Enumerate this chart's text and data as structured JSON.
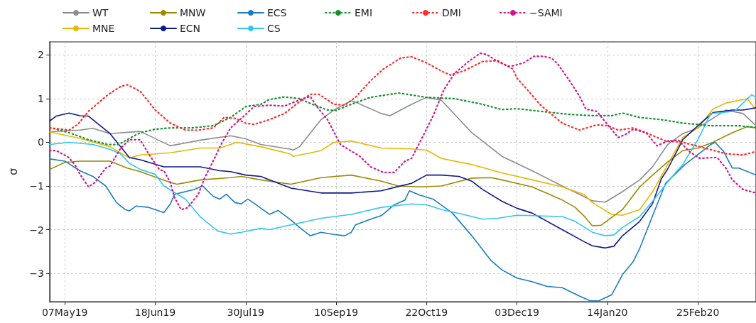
{
  "chart_data": {
    "type": "line",
    "ylabel": "σ",
    "xlim": [
      "2019-04-30",
      "2020-03-23"
    ],
    "ylim": [
      -3.65,
      2.3
    ],
    "xticks": [
      {
        "value": "2019-05-07",
        "label": "07May19"
      },
      {
        "value": "2019-06-18",
        "label": "18Jun19"
      },
      {
        "value": "2019-07-30",
        "label": "30Jul19"
      },
      {
        "value": "2019-09-10",
        "label": "10Sep19"
      },
      {
        "value": "2019-10-22",
        "label": "22Oct19"
      },
      {
        "value": "2019-12-03",
        "label": "03Dec19"
      },
      {
        "value": "2020-01-14",
        "label": "14Jan20"
      },
      {
        "value": "2020-02-25",
        "label": "25Feb20"
      }
    ],
    "yticks": [
      {
        "value": -3,
        "label": "−3"
      },
      {
        "value": -2,
        "label": "−2"
      },
      {
        "value": -1,
        "label": "−1"
      },
      0,
      1,
      2
    ],
    "grid": true,
    "legend": "top",
    "marker": "none",
    "series": [
      {
        "name": "WT",
        "color": "#8c8c8c",
        "line_style": "solid",
        "x": [
          "2019-04-30",
          "2019-05-14",
          "2019-05-20",
          "2019-05-28",
          "2019-06-11",
          "2019-06-25",
          "2019-07-09",
          "2019-07-23",
          "2019-07-30",
          "2019-08-06",
          "2019-08-20",
          "2019-08-21",
          "2019-08-24",
          "2019-09-03",
          "2019-09-09",
          "2019-09-17",
          "2019-09-19",
          "2019-10-01",
          "2019-10-05",
          "2019-10-15",
          "2019-10-22",
          "2019-10-29",
          "2019-11-12",
          "2019-11-26",
          "2019-12-10",
          "2019-12-24",
          "2020-01-03",
          "2020-01-07",
          "2020-01-13",
          "2020-01-21",
          "2020-01-29",
          "2020-02-04",
          "2020-02-11",
          "2020-02-18",
          "2020-02-25",
          "2020-03-03",
          "2020-03-09",
          "2020-03-17",
          "2020-03-23"
        ],
        "values": [
          0.24,
          0.28,
          0.32,
          0.2,
          0.25,
          -0.08,
          0.05,
          0.15,
          0.08,
          -0.05,
          -0.16,
          -0.18,
          -0.1,
          0.52,
          0.74,
          0.95,
          0.92,
          0.66,
          0.61,
          0.87,
          1.03,
          0.96,
          0.22,
          -0.32,
          -0.65,
          -1.0,
          -1.24,
          -1.34,
          -1.37,
          -1.13,
          -0.86,
          -0.56,
          -0.05,
          0.2,
          0.33,
          0.55,
          0.74,
          0.66,
          0.38
        ]
      },
      {
        "name": "MNE",
        "color": "#e6b800",
        "line_style": "solid",
        "x": [
          "2019-04-30",
          "2019-05-14",
          "2019-05-28",
          "2019-06-06",
          "2019-06-11",
          "2019-06-25",
          "2019-07-09",
          "2019-07-18",
          "2019-07-26",
          "2019-08-06",
          "2019-08-20",
          "2019-08-21",
          "2019-09-03",
          "2019-09-09",
          "2019-09-17",
          "2019-10-01",
          "2019-10-15",
          "2019-10-22",
          "2019-10-29",
          "2019-11-12",
          "2019-11-26",
          "2019-12-10",
          "2019-12-24",
          "2020-01-03",
          "2020-01-07",
          "2020-01-16",
          "2020-01-21",
          "2020-01-29",
          "2020-02-04",
          "2020-02-11",
          "2020-02-18",
          "2020-02-25",
          "2020-03-03",
          "2020-03-09",
          "2020-03-19",
          "2020-03-23"
        ],
        "values": [
          0.24,
          0.09,
          -0.1,
          -0.36,
          -0.29,
          -0.24,
          -0.13,
          -0.13,
          0.0,
          -0.1,
          -0.27,
          -0.32,
          -0.19,
          0.0,
          0.03,
          -0.13,
          -0.15,
          -0.18,
          -0.37,
          -0.51,
          -0.7,
          -0.86,
          -1.02,
          -1.19,
          -1.38,
          -1.65,
          -1.67,
          -1.54,
          -1.13,
          -0.51,
          0.11,
          0.33,
          0.76,
          0.9,
          1.0,
          0.74
        ]
      },
      {
        "name": "MNW",
        "color": "#9c8a00",
        "line_style": "solid",
        "x": [
          "2019-04-30",
          "2019-05-07",
          "2019-05-14",
          "2019-05-28",
          "2019-06-05",
          "2019-06-11",
          "2019-06-25",
          "2019-06-28",
          "2019-07-09",
          "2019-07-23",
          "2019-07-28",
          "2019-08-06",
          "2019-08-20",
          "2019-09-03",
          "2019-09-17",
          "2019-10-01",
          "2019-10-09",
          "2019-10-19",
          "2019-10-29",
          "2019-11-12",
          "2019-11-21",
          "2019-11-26",
          "2019-12-10",
          "2019-12-24",
          "2019-12-30",
          "2020-01-03",
          "2020-01-07",
          "2020-01-11",
          "2020-01-21",
          "2020-01-29",
          "2020-02-04",
          "2020-02-11",
          "2020-02-18",
          "2020-02-25",
          "2020-03-03",
          "2020-03-12",
          "2020-03-19",
          "2020-03-23"
        ],
        "values": [
          -0.62,
          -0.46,
          -0.43,
          -0.43,
          -0.59,
          -0.67,
          -0.92,
          -0.96,
          -0.86,
          -0.81,
          -0.78,
          -0.86,
          -0.96,
          -0.81,
          -0.75,
          -0.89,
          -1.0,
          -1.02,
          -1.0,
          -0.82,
          -0.81,
          -0.86,
          -1.02,
          -1.32,
          -1.49,
          -1.68,
          -1.91,
          -1.9,
          -1.54,
          -1.02,
          -0.75,
          -0.45,
          -0.19,
          -0.13,
          0.0,
          0.22,
          0.36,
          0.33
        ]
      },
      {
        "name": "ECN",
        "color": "#0d1a8f",
        "line_style": "solid",
        "x": [
          "2019-04-30",
          "2019-05-03",
          "2019-05-09",
          "2019-05-14",
          "2019-05-18",
          "2019-05-28",
          "2019-06-06",
          "2019-06-11",
          "2019-06-22",
          "2019-07-09",
          "2019-07-18",
          "2019-07-23",
          "2019-07-30",
          "2019-08-06",
          "2019-08-20",
          "2019-09-03",
          "2019-09-17",
          "2019-10-01",
          "2019-10-09",
          "2019-10-15",
          "2019-10-22",
          "2019-10-29",
          "2019-11-06",
          "2019-11-12",
          "2019-11-17",
          "2019-11-26",
          "2019-12-03",
          "2019-12-10",
          "2019-12-24",
          "2020-01-03",
          "2020-01-07",
          "2020-01-13",
          "2020-01-17",
          "2020-01-21",
          "2020-01-29",
          "2020-02-04",
          "2020-02-08",
          "2020-02-11",
          "2020-02-18",
          "2020-02-25",
          "2020-03-03",
          "2020-03-12",
          "2020-03-17",
          "2020-03-23"
        ],
        "values": [
          0.49,
          0.6,
          0.67,
          0.61,
          0.6,
          0.2,
          -0.35,
          -0.4,
          -0.56,
          -0.56,
          -0.65,
          -0.67,
          -0.75,
          -0.78,
          -1.05,
          -1.16,
          -1.16,
          -1.11,
          -1.01,
          -0.94,
          -0.75,
          -0.75,
          -0.78,
          -0.89,
          -1.08,
          -1.35,
          -1.51,
          -1.62,
          -2.0,
          -2.27,
          -2.37,
          -2.42,
          -2.38,
          -2.14,
          -1.81,
          -1.4,
          -0.84,
          -0.61,
          0.06,
          0.38,
          0.68,
          0.74,
          0.74,
          0.79
        ]
      },
      {
        "name": "ECS",
        "color": "#1a7dc0",
        "line_style": "solid",
        "x": [
          "2019-04-30",
          "2019-05-07",
          "2019-05-14",
          "2019-05-20",
          "2019-05-26",
          "2019-05-31",
          "2019-06-04",
          "2019-06-06",
          "2019-06-09",
          "2019-06-15",
          "2019-06-22",
          "2019-06-25",
          "2019-06-27",
          "2019-07-02",
          "2019-07-06",
          "2019-07-10",
          "2019-07-15",
          "2019-07-18",
          "2019-07-21",
          "2019-07-25",
          "2019-07-28",
          "2019-07-31",
          "2019-08-03",
          "2019-08-10",
          "2019-08-14",
          "2019-08-20",
          "2019-08-24",
          "2019-08-29",
          "2019-09-03",
          "2019-09-09",
          "2019-09-14",
          "2019-09-17",
          "2019-09-19",
          "2019-09-26",
          "2019-10-01",
          "2019-10-07",
          "2019-10-12",
          "2019-10-14",
          "2019-10-19",
          "2019-10-25",
          "2019-11-03",
          "2019-11-12",
          "2019-11-21",
          "2019-11-26",
          "2019-12-03",
          "2019-12-10",
          "2019-12-17",
          "2019-12-24",
          "2020-01-01",
          "2020-01-06",
          "2020-01-10",
          "2020-01-16",
          "2020-01-21",
          "2020-01-26",
          "2020-01-29",
          "2020-02-04",
          "2020-02-10",
          "2020-02-19",
          "2020-03-02",
          "2020-03-04",
          "2020-03-08",
          "2020-03-12",
          "2020-03-15",
          "2020-03-23"
        ],
        "values": [
          -0.38,
          -0.43,
          -0.65,
          -0.78,
          -1.0,
          -1.38,
          -1.54,
          -1.57,
          -1.46,
          -1.49,
          -1.61,
          -1.41,
          -1.19,
          -1.13,
          -1.08,
          -1.0,
          -1.24,
          -1.3,
          -1.19,
          -1.38,
          -1.41,
          -1.3,
          -1.4,
          -1.65,
          -1.56,
          -1.78,
          -1.95,
          -2.14,
          -2.06,
          -2.11,
          -2.14,
          -2.06,
          -1.89,
          -1.76,
          -1.68,
          -1.43,
          -1.32,
          -1.11,
          -1.21,
          -1.3,
          -1.62,
          -2.14,
          -2.71,
          -2.92,
          -3.11,
          -3.19,
          -3.3,
          -3.33,
          -3.52,
          -3.63,
          -3.63,
          -3.49,
          -3.03,
          -2.73,
          -2.43,
          -1.68,
          -0.94,
          -0.51,
          -0.05,
          0.0,
          -0.21,
          -0.59,
          -0.59,
          -0.75
        ]
      },
      {
        "name": "CS",
        "color": "#33c5f0",
        "line_style": "solid",
        "x": [
          "2019-04-30",
          "2019-05-09",
          "2019-05-20",
          "2019-05-28",
          "2019-06-02",
          "2019-06-06",
          "2019-06-11",
          "2019-06-18",
          "2019-06-22",
          "2019-07-02",
          "2019-07-09",
          "2019-07-17",
          "2019-07-23",
          "2019-07-28",
          "2019-08-06",
          "2019-08-10",
          "2019-08-20",
          "2019-09-03",
          "2019-09-17",
          "2019-10-01",
          "2019-10-15",
          "2019-10-22",
          "2019-10-29",
          "2019-11-08",
          "2019-11-17",
          "2019-11-24",
          "2019-12-03",
          "2019-12-10",
          "2019-12-24",
          "2019-12-30",
          "2020-01-07",
          "2020-01-13",
          "2020-01-17",
          "2020-01-21",
          "2020-01-29",
          "2020-02-04",
          "2020-02-10",
          "2020-02-15",
          "2020-02-18",
          "2020-02-25",
          "2020-03-02",
          "2020-03-13",
          "2020-03-21",
          "2020-03-23"
        ],
        "values": [
          -0.05,
          0.0,
          -0.05,
          -0.16,
          -0.27,
          -0.48,
          -0.62,
          -0.73,
          -1.0,
          -1.3,
          -1.71,
          -2.03,
          -2.1,
          -2.06,
          -1.97,
          -2.0,
          -1.89,
          -1.74,
          -1.65,
          -1.49,
          -1.41,
          -1.43,
          -1.54,
          -1.65,
          -1.76,
          -1.74,
          -1.67,
          -1.68,
          -1.7,
          -1.81,
          -2.06,
          -2.14,
          -2.12,
          -1.95,
          -1.7,
          -1.35,
          -0.97,
          -0.67,
          -0.51,
          0.06,
          0.66,
          0.71,
          1.09,
          1.03
        ]
      },
      {
        "name": "EMI",
        "color": "#15922f",
        "line_style": "dotted",
        "x": [
          "2019-04-30",
          "2019-05-09",
          "2019-05-18",
          "2019-05-27",
          "2019-06-01",
          "2019-06-06",
          "2019-06-11",
          "2019-06-18",
          "2019-06-25",
          "2019-07-05",
          "2019-07-15",
          "2019-07-23",
          "2019-07-30",
          "2019-08-06",
          "2019-08-10",
          "2019-08-17",
          "2019-08-24",
          "2019-08-30",
          "2019-09-06",
          "2019-09-10",
          "2019-09-17",
          "2019-09-26",
          "2019-10-09",
          "2019-10-22",
          "2019-11-04",
          "2019-11-17",
          "2019-11-26",
          "2019-12-03",
          "2019-12-14",
          "2019-12-27",
          "2020-01-07",
          "2020-01-16",
          "2020-01-21",
          "2020-01-29",
          "2020-02-08",
          "2020-02-18",
          "2020-03-02",
          "2020-03-15",
          "2020-03-23"
        ],
        "values": [
          0.34,
          0.22,
          0.06,
          -0.05,
          -0.05,
          0.09,
          0.22,
          0.3,
          0.33,
          0.33,
          0.38,
          0.57,
          0.82,
          0.87,
          0.98,
          1.04,
          1.0,
          0.87,
          0.74,
          0.73,
          0.87,
          1.03,
          1.13,
          1.03,
          1.0,
          0.87,
          0.75,
          0.77,
          0.71,
          0.64,
          0.61,
          0.61,
          0.67,
          0.57,
          0.52,
          0.44,
          0.38,
          0.38,
          0.34
        ]
      },
      {
        "name": "DMI",
        "color": "#ff2a2a",
        "line_style": "dotted",
        "x": [
          "2019-04-30",
          "2019-05-09",
          "2019-05-13",
          "2019-05-18",
          "2019-05-27",
          "2019-06-02",
          "2019-06-05",
          "2019-06-11",
          "2019-06-18",
          "2019-06-25",
          "2019-07-02",
          "2019-07-08",
          "2019-07-15",
          "2019-07-20",
          "2019-07-25",
          "2019-07-30",
          "2019-08-03",
          "2019-08-10",
          "2019-08-17",
          "2019-08-24",
          "2019-08-29",
          "2019-09-02",
          "2019-09-09",
          "2019-09-14",
          "2019-09-19",
          "2019-09-26",
          "2019-10-02",
          "2019-10-10",
          "2019-10-15",
          "2019-10-22",
          "2019-10-29",
          "2019-11-02",
          "2019-11-08",
          "2019-11-17",
          "2019-11-24",
          "2019-12-01",
          "2019-12-03",
          "2019-12-07",
          "2019-12-14",
          "2019-12-24",
          "2020-01-01",
          "2020-01-09",
          "2020-01-14",
          "2020-01-19",
          "2020-01-26",
          "2020-02-01",
          "2020-02-10",
          "2020-02-18",
          "2020-02-28",
          "2020-03-09",
          "2020-03-17",
          "2020-03-23"
        ],
        "values": [
          0.33,
          0.28,
          0.41,
          0.71,
          1.09,
          1.28,
          1.32,
          1.17,
          0.74,
          0.44,
          0.28,
          0.28,
          0.33,
          0.57,
          0.55,
          0.44,
          0.41,
          0.52,
          0.66,
          0.93,
          1.1,
          1.1,
          0.87,
          0.85,
          1.03,
          1.41,
          1.68,
          1.93,
          1.96,
          1.82,
          1.63,
          1.54,
          1.63,
          1.85,
          1.87,
          1.68,
          1.47,
          1.25,
          0.85,
          0.44,
          0.28,
          0.4,
          0.38,
          0.28,
          0.33,
          0.22,
          0.03,
          0.0,
          -0.13,
          -0.26,
          -0.29,
          -0.21
        ]
      },
      {
        "name": "−SAMI",
        "color": "#d0158f",
        "line_style": "dotted",
        "x": [
          "2019-04-30",
          "2019-05-03",
          "2019-05-09",
          "2019-05-12",
          "2019-05-14",
          "2019-05-18",
          "2019-05-21",
          "2019-05-26",
          "2019-05-28",
          "2019-06-02",
          "2019-06-06",
          "2019-06-11",
          "2019-06-15",
          "2019-06-20",
          "2019-06-22",
          "2019-06-25",
          "2019-06-27",
          "2019-06-30",
          "2019-07-03",
          "2019-07-08",
          "2019-07-11",
          "2019-07-16",
          "2019-07-18",
          "2019-07-23",
          "2019-07-28",
          "2019-08-03",
          "2019-08-10",
          "2019-08-17",
          "2019-08-22",
          "2019-08-25",
          "2019-08-29",
          "2019-09-01",
          "2019-09-06",
          "2019-09-12",
          "2019-09-21",
          "2019-09-26",
          "2019-10-02",
          "2019-10-07",
          "2019-10-12",
          "2019-10-15",
          "2019-10-20",
          "2019-10-25",
          "2019-10-30",
          "2019-11-04",
          "2019-11-11",
          "2019-11-16",
          "2019-11-19",
          "2019-11-24",
          "2019-11-29",
          "2019-12-01",
          "2019-12-06",
          "2019-12-11",
          "2019-12-15",
          "2019-12-19",
          "2019-12-22",
          "2019-12-27",
          "2020-01-01",
          "2020-01-04",
          "2020-01-09",
          "2020-01-14",
          "2020-01-19",
          "2020-01-22",
          "2020-01-26",
          "2020-02-01",
          "2020-02-06",
          "2020-02-11",
          "2020-02-16",
          "2020-02-21",
          "2020-02-26",
          "2020-03-02",
          "2020-03-05",
          "2020-03-09",
          "2020-03-12",
          "2020-03-17",
          "2020-03-23"
        ],
        "values": [
          -0.19,
          -0.19,
          -0.35,
          -0.54,
          -0.73,
          -1.02,
          -0.92,
          -0.59,
          -0.54,
          -0.13,
          0.06,
          0.06,
          -0.27,
          -0.63,
          -0.65,
          -0.92,
          -1.27,
          -1.54,
          -1.5,
          -1.19,
          -0.81,
          -0.32,
          -0.1,
          0.33,
          0.55,
          0.82,
          0.85,
          0.83,
          0.93,
          0.99,
          1.05,
          0.82,
          0.52,
          -0.05,
          -0.32,
          -0.56,
          -0.69,
          -0.69,
          -0.43,
          -0.37,
          0.11,
          0.6,
          1.2,
          1.58,
          1.87,
          2.04,
          2.01,
          1.85,
          1.74,
          1.75,
          1.82,
          1.97,
          1.97,
          1.93,
          1.79,
          1.44,
          1.06,
          0.76,
          0.71,
          0.41,
          0.11,
          0.17,
          0.3,
          0.22,
          -0.08,
          0.03,
          0.05,
          -0.21,
          -0.37,
          -0.35,
          -0.35,
          -0.59,
          -0.86,
          -1.08,
          -1.16
        ]
      }
    ]
  }
}
